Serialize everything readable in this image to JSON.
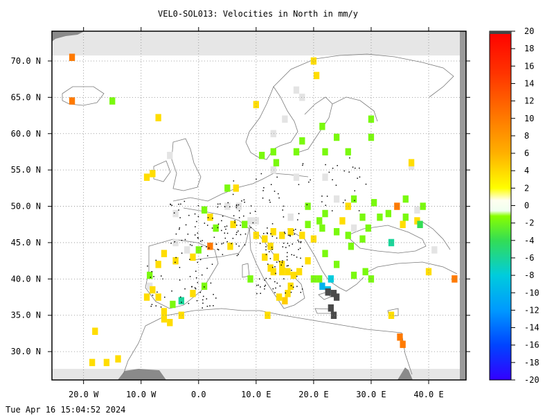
{
  "title": "VEL0-SOL013: Velocities in North in mm/y",
  "timestamp": "Tue Apr 16 15:04:52 2024",
  "chart_data": {
    "type": "heatmap",
    "title": "VEL0-SOL013: Velocities in North in mm/y",
    "xlim": [
      -25.5,
      46.5
    ],
    "ylim": [
      26.1,
      74.1
    ],
    "x_ticks": [
      {
        "value": -20,
        "label": "20.0 W"
      },
      {
        "value": -10,
        "label": "10.0 W"
      },
      {
        "value": 0,
        "label": "0.0"
      },
      {
        "value": 10,
        "label": "10.0 E"
      },
      {
        "value": 20,
        "label": "20.0 E"
      },
      {
        "value": 30,
        "label": "30.0 E"
      },
      {
        "value": 40,
        "label": "40.0 E"
      }
    ],
    "y_ticks": [
      {
        "value": 30,
        "label": "30.0 N"
      },
      {
        "value": 35,
        "label": "35.0 N"
      },
      {
        "value": 40,
        "label": "40.0 N"
      },
      {
        "value": 45,
        "label": "45.0 N"
      },
      {
        "value": 50,
        "label": "50.0 N"
      },
      {
        "value": 55,
        "label": "55.0 N"
      },
      {
        "value": 60,
        "label": "60.0 N"
      },
      {
        "value": 65,
        "label": "65.0 N"
      },
      {
        "value": 70,
        "label": "70.0 N"
      }
    ],
    "grid": true,
    "colorbar": {
      "min": -20,
      "max": 20,
      "ticks": [
        20,
        18,
        16,
        14,
        12,
        10,
        8,
        6,
        4,
        2,
        0,
        -2,
        -4,
        -6,
        -8,
        -10,
        -12,
        -14,
        -16,
        -18,
        -20
      ]
    },
    "cells": [
      {
        "lon": -22,
        "lat": 70.5,
        "value": 8
      },
      {
        "lon": -22,
        "lat": 64.5,
        "value": 8
      },
      {
        "lon": -15,
        "lat": 64.5,
        "value": -1.5
      },
      {
        "lon": -7,
        "lat": 62.2,
        "value": 3
      },
      {
        "lon": -8,
        "lat": 54.5,
        "value": 3
      },
      {
        "lon": -9,
        "lat": 54,
        "value": 3
      },
      {
        "lon": 10,
        "lat": 64,
        "value": 3
      },
      {
        "lon": 20,
        "lat": 70,
        "value": 3
      },
      {
        "lon": 20.5,
        "lat": 68,
        "value": 3
      },
      {
        "lon": 21.5,
        "lat": 61,
        "value": -1.5
      },
      {
        "lon": 18,
        "lat": 59,
        "value": -1.5
      },
      {
        "lon": 22,
        "lat": 57.5,
        "value": -1.5
      },
      {
        "lon": 24,
        "lat": 59.5,
        "value": -1.5
      },
      {
        "lon": 26,
        "lat": 57.5,
        "value": -1.5
      },
      {
        "lon": 30,
        "lat": 62,
        "value": -1.5
      },
      {
        "lon": 30,
        "lat": 59.5,
        "value": -1.5
      },
      {
        "lon": 13,
        "lat": 57.5,
        "value": -1.5
      },
      {
        "lon": 11,
        "lat": 57,
        "value": -1.5
      },
      {
        "lon": 13.5,
        "lat": 56,
        "value": -1.5
      },
      {
        "lon": 17,
        "lat": 57.5,
        "value": -1.5
      },
      {
        "lon": 37,
        "lat": 56,
        "value": 3
      },
      {
        "lon": 5,
        "lat": 52.5,
        "value": -1.5
      },
      {
        "lon": 6.5,
        "lat": 52.5,
        "value": 3
      },
      {
        "lon": 1,
        "lat": 49.5,
        "value": -1.5
      },
      {
        "lon": 2,
        "lat": 48.5,
        "value": 3
      },
      {
        "lon": 8,
        "lat": 47.5,
        "value": -1.5
      },
      {
        "lon": 10,
        "lat": 46,
        "value": 3
      },
      {
        "lon": 11.5,
        "lat": 45.5,
        "value": 3
      },
      {
        "lon": 12.5,
        "lat": 44.5,
        "value": 3
      },
      {
        "lon": 13,
        "lat": 46.5,
        "value": 3
      },
      {
        "lon": 14.5,
        "lat": 46,
        "value": 3
      },
      {
        "lon": 16,
        "lat": 46.5,
        "value": 3
      },
      {
        "lon": 13.5,
        "lat": 43,
        "value": 3
      },
      {
        "lon": 14.5,
        "lat": 42,
        "value": 3
      },
      {
        "lon": 15.5,
        "lat": 41,
        "value": 3
      },
      {
        "lon": 16.5,
        "lat": 40.5,
        "value": 3
      },
      {
        "lon": 17.5,
        "lat": 41,
        "value": 3
      },
      {
        "lon": 16,
        "lat": 39,
        "value": 3
      },
      {
        "lon": 15.5,
        "lat": 38,
        "value": 3
      },
      {
        "lon": 14,
        "lat": 37.5,
        "value": 3
      },
      {
        "lon": 15,
        "lat": 37,
        "value": 4
      },
      {
        "lon": 12.5,
        "lat": 41.5,
        "value": 3
      },
      {
        "lon": 11.5,
        "lat": 43,
        "value": 3
      },
      {
        "lon": 19,
        "lat": 42.5,
        "value": 3
      },
      {
        "lon": 20,
        "lat": 40,
        "value": -1.5
      },
      {
        "lon": 21,
        "lat": 40,
        "value": -1.5
      },
      {
        "lon": 21.5,
        "lat": 39,
        "value": -10
      },
      {
        "lon": 22.5,
        "lat": 38.5,
        "value": -9
      },
      {
        "lon": 23,
        "lat": 40,
        "value": -8
      },
      {
        "lon": 22,
        "lat": 43.5,
        "value": -1.5
      },
      {
        "lon": 20,
        "lat": 45.5,
        "value": 3
      },
      {
        "lon": 18,
        "lat": 46,
        "value": 3
      },
      {
        "lon": 21.5,
        "lat": 47,
        "value": -1.5
      },
      {
        "lon": 24,
        "lat": 46.5,
        "value": -1.5
      },
      {
        "lon": 26.5,
        "lat": 44.5,
        "value": -1.5
      },
      {
        "lon": 28.5,
        "lat": 45.5,
        "value": -1.5
      },
      {
        "lon": 29.5,
        "lat": 47,
        "value": -1.5
      },
      {
        "lon": 31.5,
        "lat": 48.5,
        "value": -1.5
      },
      {
        "lon": 30.5,
        "lat": 50.5,
        "value": -1.5
      },
      {
        "lon": 33,
        "lat": 49,
        "value": -1.5
      },
      {
        "lon": 34.5,
        "lat": 50,
        "value": 8
      },
      {
        "lon": 36,
        "lat": 48.5,
        "value": -1.5
      },
      {
        "lon": 38,
        "lat": 48,
        "value": 3
      },
      {
        "lon": 38.5,
        "lat": 47.5,
        "value": -4
      },
      {
        "lon": 33.5,
        "lat": 45,
        "value": -6
      },
      {
        "lon": 27,
        "lat": 51,
        "value": -1.5
      },
      {
        "lon": 28.5,
        "lat": 48.5,
        "value": -1.5
      },
      {
        "lon": 26,
        "lat": 50,
        "value": 3
      },
      {
        "lon": 25,
        "lat": 48,
        "value": 3
      },
      {
        "lon": 19,
        "lat": 50,
        "value": -1.5
      },
      {
        "lon": 22,
        "lat": 49,
        "value": -1.5
      },
      {
        "lon": 21,
        "lat": 48,
        "value": -1.5
      },
      {
        "lon": 35.5,
        "lat": 47.5,
        "value": 3
      },
      {
        "lon": 36,
        "lat": 51,
        "value": -1.5
      },
      {
        "lon": 39,
        "lat": 50,
        "value": -1.5
      },
      {
        "lon": 40,
        "lat": 41,
        "value": 3
      },
      {
        "lon": 44.5,
        "lat": 40,
        "value": 8
      },
      {
        "lon": 29,
        "lat": 41,
        "value": -1.5
      },
      {
        "lon": 27,
        "lat": 40.5,
        "value": -1.5
      },
      {
        "lon": 30,
        "lat": 40,
        "value": -1.5
      },
      {
        "lon": 33.5,
        "lat": 35,
        "value": 3
      },
      {
        "lon": 35,
        "lat": 32,
        "value": 8
      },
      {
        "lon": 35.5,
        "lat": 31,
        "value": 8
      },
      {
        "lon": -1,
        "lat": 43,
        "value": 3
      },
      {
        "lon": 0,
        "lat": 44,
        "value": -1.5
      },
      {
        "lon": 2,
        "lat": 44.5,
        "value": 8
      },
      {
        "lon": 5.5,
        "lat": 44.5,
        "value": 3
      },
      {
        "lon": -6,
        "lat": 43.5,
        "value": 3
      },
      {
        "lon": -4,
        "lat": 42.5,
        "value": 3
      },
      {
        "lon": -7,
        "lat": 42,
        "value": 3
      },
      {
        "lon": -8.5,
        "lat": 40.5,
        "value": -1.5
      },
      {
        "lon": -8,
        "lat": 38.5,
        "value": 3
      },
      {
        "lon": -7,
        "lat": 37.5,
        "value": 3
      },
      {
        "lon": -9,
        "lat": 37.5,
        "value": 3
      },
      {
        "lon": -6,
        "lat": 35.5,
        "value": 3
      },
      {
        "lon": -4.5,
        "lat": 36.5,
        "value": -1.5
      },
      {
        "lon": -3,
        "lat": 37,
        "value": -6
      },
      {
        "lon": -1,
        "lat": 38,
        "value": 3
      },
      {
        "lon": 1,
        "lat": 39,
        "value": -1.5
      },
      {
        "lon": -3,
        "lat": 35,
        "value": 3
      },
      {
        "lon": -6,
        "lat": 34.5,
        "value": 3
      },
      {
        "lon": -5,
        "lat": 34,
        "value": 3
      },
      {
        "lon": -18,
        "lat": 32.8,
        "value": 3
      },
      {
        "lon": -18.5,
        "lat": 28.5,
        "value": 3
      },
      {
        "lon": -16,
        "lat": 28.5,
        "value": 3
      },
      {
        "lon": -14,
        "lat": 29,
        "value": 3
      },
      {
        "lon": 12,
        "lat": 35,
        "value": 3
      },
      {
        "lon": 6,
        "lat": 47.5,
        "value": 3
      },
      {
        "lon": 3,
        "lat": 47,
        "value": -1.5
      },
      {
        "lon": 14.5,
        "lat": 41,
        "value": 3
      },
      {
        "lon": 13,
        "lat": 41,
        "value": 3
      },
      {
        "lon": 9,
        "lat": 40,
        "value": -1.5
      },
      {
        "lon": 19,
        "lat": 47.5,
        "value": -1.5
      },
      {
        "lon": 24,
        "lat": 42,
        "value": -1.5
      },
      {
        "lon": 26,
        "lat": 46,
        "value": -1.5
      }
    ],
    "dark_cells": [
      {
        "lon": 22.5,
        "lat": 38.2
      },
      {
        "lon": 23.5,
        "lat": 38
      },
      {
        "lon": 24,
        "lat": 37.5
      },
      {
        "lon": 23,
        "lat": 36
      },
      {
        "lon": 23.5,
        "lat": 35
      }
    ],
    "nodata_cells": [
      {
        "lon": 18,
        "lat": 65
      },
      {
        "lon": 17,
        "lat": 66
      },
      {
        "lon": 15,
        "lat": 62
      },
      {
        "lon": 13,
        "lat": 60
      },
      {
        "lon": 13,
        "lat": 55
      },
      {
        "lon": 17,
        "lat": 54
      },
      {
        "lon": 22,
        "lat": 54
      },
      {
        "lon": 24,
        "lat": 51
      },
      {
        "lon": 27,
        "lat": 47
      },
      {
        "lon": 5,
        "lat": 50
      },
      {
        "lon": -4,
        "lat": 49
      },
      {
        "lon": 7,
        "lat": 50
      },
      {
        "lon": 16,
        "lat": 48.5
      },
      {
        "lon": 9,
        "lat": 48
      },
      {
        "lon": -4,
        "lat": 45
      },
      {
        "lon": 41,
        "lat": 44
      },
      {
        "lon": 37,
        "lat": 55.5
      },
      {
        "lon": 38,
        "lat": 49.5
      },
      {
        "lon": -8.5,
        "lat": 39
      },
      {
        "lon": -2,
        "lat": 44
      },
      {
        "lon": -5,
        "lat": 57
      },
      {
        "lon": 10,
        "lat": 48
      }
    ]
  }
}
